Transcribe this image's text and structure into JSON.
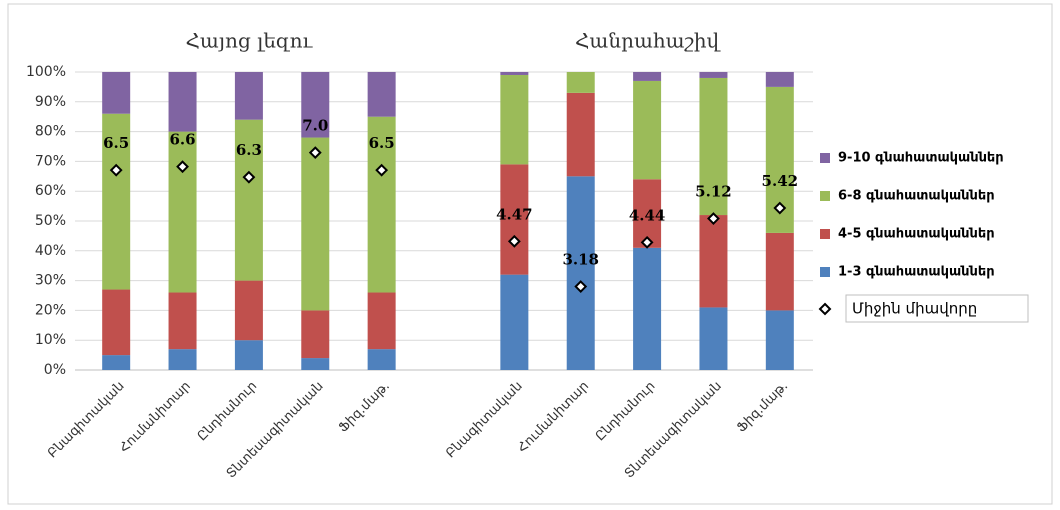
{
  "chart_data": {
    "type": "bar",
    "stacked": true,
    "annotations": [
      {
        "text": "Հայոց լեզու"
      },
      {
        "text": "Հանրահաշիվ"
      }
    ],
    "categories": [
      "Բնագիտական",
      "Հումանիտար",
      "Ընդհանուր",
      "Տնտեսագիտական",
      "Ֆիզ.մաթ.",
      null,
      "Բնագիտական",
      "Հումանիտար",
      "Ընդհանուր",
      "Տնտեսագիտական",
      "Ֆիզ.մաթ."
    ],
    "series": [
      {
        "name": "1-3 գնահատականներ",
        "color": "#4f81bd",
        "values": [
          5,
          7,
          10,
          4,
          7,
          null,
          32,
          65,
          41,
          21,
          20
        ]
      },
      {
        "name": "4-5 գնահատականներ",
        "color": "#c0504d",
        "values": [
          22,
          19,
          20,
          16,
          19,
          null,
          37,
          28,
          23,
          31,
          26
        ]
      },
      {
        "name": "6-8 գնահատականներ",
        "color": "#9bbb59",
        "values": [
          59,
          54,
          54,
          58,
          59,
          null,
          30,
          7,
          33,
          46,
          49
        ]
      },
      {
        "name": "9-10 գնահատականներ",
        "color": "#8064a2",
        "values": [
          14,
          20,
          16,
          22,
          15,
          null,
          1,
          0,
          3,
          2,
          5
        ]
      },
      {
        "name": "Միջին միավորը",
        "type": "scatter",
        "axis": "y2",
        "color": "#000000",
        "values": [
          6.5,
          6.6,
          6.3,
          7.0,
          6.5,
          null,
          4.47,
          3.18,
          4.44,
          5.12,
          5.42
        ],
        "value_labels": [
          "6.5",
          "6.6",
          "6.3",
          "7.0",
          "6.5",
          null,
          "4.47",
          "3.18",
          "4.44",
          "5.12",
          "5.42"
        ]
      }
    ],
    "ylim": [
      0,
      100
    ],
    "yticks": [
      {
        "value": 0,
        "label": "0%"
      },
      {
        "value": 10,
        "label": "10%"
      },
      {
        "value": 20,
        "label": "20%"
      },
      {
        "value": 30,
        "label": "30%"
      },
      {
        "value": 40,
        "label": "40%"
      },
      {
        "value": 50,
        "label": "50%"
      },
      {
        "value": 60,
        "label": "60%"
      },
      {
        "value": 70,
        "label": "70%"
      },
      {
        "value": 80,
        "label": "80%"
      },
      {
        "value": 90,
        "label": "90%"
      },
      {
        "value": 100,
        "label": "100%"
      }
    ],
    "y2lim": [
      0.8,
      9.3
    ],
    "grid": true,
    "legend": "right"
  }
}
